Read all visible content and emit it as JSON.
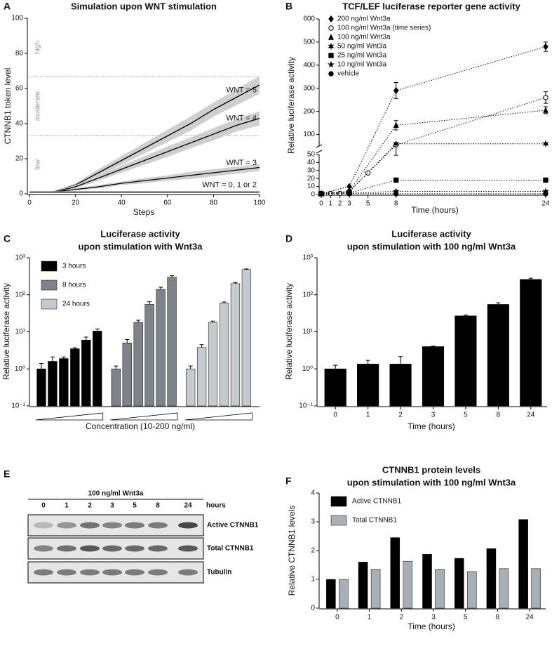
{
  "chart_data": [
    {
      "type": "line",
      "panel": "A",
      "title": [
        "Simulation upon WNT stimulation"
      ],
      "xlabel": "Steps",
      "ylabel": "CTNNB1 token level",
      "xlim": [
        0,
        100
      ],
      "xticks": [
        0,
        20,
        40,
        60,
        80,
        100
      ],
      "ylim": [
        0,
        100
      ],
      "yticks": [
        0,
        20,
        40,
        60,
        80,
        100
      ],
      "hlines": [
        33.3,
        66.7
      ],
      "zones": [
        "low",
        "moderate",
        "high"
      ],
      "error_style": "band",
      "line_labels": true,
      "color": "#000000",
      "band_color": "#cfcfcf",
      "x": [
        0,
        10,
        20,
        30,
        40,
        50,
        60,
        70,
        80,
        90,
        100
      ],
      "series": [
        {
          "name": "WNT = 5",
          "values": [
            1,
            1,
            5,
            12,
            19,
            26,
            33,
            40,
            48,
            55,
            62
          ],
          "errors": [
            0,
            0.5,
            1,
            2,
            2.5,
            3,
            3.5,
            4,
            4,
            4.5,
            5
          ]
        },
        {
          "name": "WNT = 4",
          "values": [
            1,
            1,
            4,
            9,
            14,
            19,
            24,
            29,
            34,
            39,
            43
          ],
          "errors": [
            0,
            0.5,
            1,
            1.5,
            2,
            2.5,
            3,
            3,
            3.5,
            3.5,
            4
          ]
        },
        {
          "name": "WNT = 3",
          "values": [
            1,
            1,
            2.5,
            4,
            6,
            7.5,
            9,
            10.5,
            12,
            13.5,
            15
          ],
          "errors": [
            0,
            0.3,
            0.5,
            1,
            1,
            1.5,
            1.5,
            2,
            2,
            2,
            2
          ]
        },
        {
          "name": "WNT = 0, 1 or 2",
          "values": [
            1,
            1,
            1,
            1,
            1,
            1,
            1,
            1,
            1,
            1,
            1
          ],
          "errors": [
            0.5,
            0.5,
            0.5,
            0.5,
            0.5,
            0.5,
            0.5,
            0.5,
            0.5,
            0.5,
            0.5
          ]
        }
      ]
    },
    {
      "type": "line",
      "panel": "B",
      "title": [
        "TCF/LEF luciferase reporter gene activity"
      ],
      "xlabel": "Time (hours)",
      "ylabel": "Relative luciferase activity",
      "xlim": [
        0,
        24
      ],
      "xticks": [
        0,
        1,
        2,
        3,
        5,
        8,
        24
      ],
      "ysegments": [
        {
          "ylim": [
            0,
            50
          ],
          "yticks": [
            0,
            10,
            20,
            30,
            40,
            50
          ]
        },
        {
          "ylim": [
            50,
            600
          ],
          "yticks": [
            100,
            200,
            300,
            400,
            500,
            600
          ]
        }
      ],
      "error_style": "bars",
      "dashed": true,
      "legend": "upper left",
      "color": "#000000",
      "series": [
        {
          "name": "200 ng/ml Wnt3a",
          "marker": "diamond",
          "x": [
            0,
            3,
            8,
            24
          ],
          "values": [
            1,
            10,
            290,
            480
          ],
          "errors": [
            0,
            0,
            35,
            20
          ]
        },
        {
          "name": "100 ng/ml Wnt3a (time series)",
          "marker": "circle-open",
          "x": [
            0,
            1,
            2,
            3,
            5,
            8,
            24
          ],
          "values": [
            1,
            1.4,
            1.4,
            4,
            27,
            55,
            260
          ],
          "errors": [
            0.2,
            0.3,
            0.7,
            0.1,
            1.5,
            6,
            25
          ]
        },
        {
          "name": "100 ng/ml Wnt3a",
          "marker": "triangle",
          "x": [
            0,
            3,
            8,
            24
          ],
          "values": [
            1,
            4,
            140,
            205
          ],
          "errors": [
            0,
            0.3,
            20,
            15
          ]
        },
        {
          "name": "50 ng/ml Wnt3a",
          "marker": "asterisk",
          "x": [
            0,
            3,
            8,
            24
          ],
          "values": [
            1,
            3.5,
            60,
            60
          ],
          "errors": [
            0,
            0.3,
            5,
            2
          ]
        },
        {
          "name": "25 ng/ml Wnt3a",
          "marker": "square",
          "x": [
            0,
            3,
            8,
            24
          ],
          "values": [
            1,
            2,
            18,
            18
          ],
          "errors": [
            0,
            0.2,
            2.5,
            1
          ]
        },
        {
          "name": "10 ng/ml Wnt3a",
          "marker": "star",
          "x": [
            0,
            3,
            8,
            24
          ],
          "values": [
            1,
            1.5,
            4,
            4
          ],
          "errors": [
            0,
            0.2,
            0.5,
            0.3
          ]
        },
        {
          "name": "vehicle",
          "marker": "circle",
          "x": [
            0,
            3,
            8,
            24
          ],
          "values": [
            1,
            1,
            1,
            1
          ],
          "errors": [
            0,
            0,
            0,
            0
          ]
        }
      ]
    },
    {
      "type": "bar",
      "panel": "C",
      "title": [
        "Luciferase activity",
        "upon stimulation with Wnt3a"
      ],
      "xlabel": "Concentration (10-200 ng/ml)",
      "ylabel": "Relative luciferase activity",
      "log": true,
      "grouping": "series",
      "ramps": true,
      "legend": "upper left",
      "ylim": [
        0.1,
        1000
      ],
      "yticks": [
        {
          "value": 0.1,
          "label": "10⁻¹"
        },
        {
          "value": 1,
          "label": "10⁰"
        },
        {
          "value": 10,
          "label": "10¹"
        },
        {
          "value": 100,
          "label": "10²"
        },
        {
          "value": 1000,
          "label": "10³"
        }
      ],
      "categories": [
        null,
        null,
        null,
        null,
        null,
        null
      ],
      "series": [
        {
          "name": "3 hours",
          "color": "#000000",
          "values": [
            1,
            1.6,
            1.9,
            3.5,
            6,
            10.5
          ],
          "errors": [
            0.4,
            0.5,
            0.2,
            0.2,
            1.2,
            1.5
          ]
        },
        {
          "name": "8 hours",
          "color": "#7d8388",
          "values": [
            1,
            5,
            18,
            55,
            140,
            300
          ],
          "errors": [
            0.2,
            1.2,
            2.5,
            10,
            20,
            30
          ]
        },
        {
          "name": "24 hours",
          "color": "#c5cacc",
          "values": [
            1,
            3.8,
            18,
            60,
            200,
            480
          ],
          "errors": [
            0.2,
            0.7,
            1.5,
            4,
            15,
            20
          ]
        }
      ]
    },
    {
      "type": "bar",
      "panel": "D",
      "title": [
        "Luciferase activity",
        "upon stimulation with 100 ng/ml Wnt3a"
      ],
      "xlabel": "Time (hours)",
      "ylabel": "Relative luciferase activity",
      "log": true,
      "color": "#000000",
      "ylim": [
        0.1,
        1000
      ],
      "yticks": [
        {
          "value": 0.1,
          "label": "10⁻¹"
        },
        {
          "value": 1,
          "label": "10⁰"
        },
        {
          "value": 10,
          "label": "10¹"
        },
        {
          "value": 100,
          "label": "10²"
        },
        {
          "value": 1000,
          "label": "10³"
        }
      ],
      "categories": [
        "0",
        "1",
        "2",
        "3",
        "5",
        "8",
        "24"
      ],
      "values": [
        1,
        1.35,
        1.35,
        4,
        27,
        55,
        260
      ],
      "errors": [
        0.25,
        0.35,
        0.8,
        0.1,
        1.5,
        6,
        20
      ]
    },
    {
      "type": "bar",
      "panel": "F",
      "title": [
        "CTNNB1 protein levels",
        "upon stimulation with 100 ng/ml Wnt3a"
      ],
      "xlabel": "Time (hours)",
      "ylabel": "Relative CTNNB1 levels",
      "legend": "upper left",
      "ylim": [
        0,
        4
      ],
      "yticks": [
        0,
        1,
        2,
        3,
        4
      ],
      "categories": [
        "0",
        "1",
        "2",
        "3",
        "5",
        "8",
        "24"
      ],
      "series": [
        {
          "name": "Active CTNNB1",
          "color": "#000000",
          "values": [
            1,
            1.6,
            2.45,
            1.87,
            1.73,
            2.07,
            3.08
          ]
        },
        {
          "name": "Total CTNNB1",
          "color": "#a7b0b5",
          "values": [
            1,
            1.35,
            1.63,
            1.35,
            1.27,
            1.37,
            1.37
          ]
        }
      ]
    }
  ],
  "blot": {
    "panel": "E",
    "treatment": "100 ng/ml Wnt3a",
    "lanes": [
      "0",
      "1",
      "2",
      "3",
      "5",
      "8",
      "24"
    ],
    "unit": "hours",
    "rows": [
      "Active CTNNB1",
      "Total CTNNB1",
      "Tubulin"
    ]
  }
}
